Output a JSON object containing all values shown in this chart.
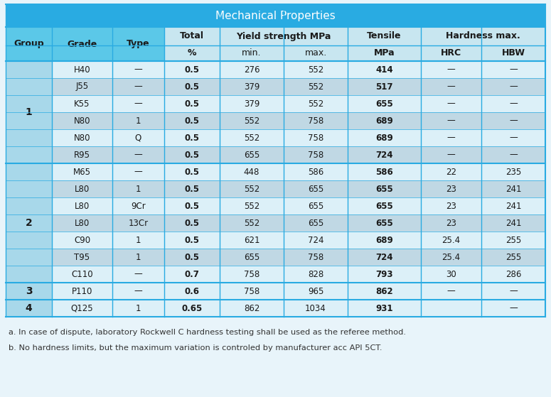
{
  "title": "Mechanical Properties",
  "title_bg": "#29ABE2",
  "title_color": "white",
  "header_bg_left": "#5BC8E8",
  "header_bg_right": "#C8E6F0",
  "group_col_bg": "#A8D8EA",
  "outer_bg": "#E8F4FA",
  "sep_color": "#29ABE2",
  "row_light": "#DCF0F8",
  "row_dark": "#C0D8E4",
  "rows": [
    {
      "group": "1",
      "grade": "H40",
      "type": "—",
      "total": "0.5",
      "ys_min": "276",
      "ys_max": "552",
      "tensile": "414",
      "hrc": "—",
      "hbw": "—",
      "group_start": true,
      "group_span": 6
    },
    {
      "group": "1",
      "grade": "J55",
      "type": "—",
      "total": "0.5",
      "ys_min": "379",
      "ys_max": "552",
      "tensile": "517",
      "hrc": "—",
      "hbw": "—",
      "group_start": false,
      "group_span": 0
    },
    {
      "group": "1",
      "grade": "K55",
      "type": "—",
      "total": "0.5",
      "ys_min": "379",
      "ys_max": "552",
      "tensile": "655",
      "hrc": "—",
      "hbw": "—",
      "group_start": false,
      "group_span": 0
    },
    {
      "group": "1",
      "grade": "N80",
      "type": "1",
      "total": "0.5",
      "ys_min": "552",
      "ys_max": "758",
      "tensile": "689",
      "hrc": "—",
      "hbw": "—",
      "group_start": false,
      "group_span": 0
    },
    {
      "group": "1",
      "grade": "N80",
      "type": "Q",
      "total": "0.5",
      "ys_min": "552",
      "ys_max": "758",
      "tensile": "689",
      "hrc": "—",
      "hbw": "—",
      "group_start": false,
      "group_span": 0
    },
    {
      "group": "1",
      "grade": "R95",
      "type": "—",
      "total": "0.5",
      "ys_min": "655",
      "ys_max": "758",
      "tensile": "724",
      "hrc": "—",
      "hbw": "—",
      "group_start": false,
      "group_span": 0
    },
    {
      "group": "2",
      "grade": "M65",
      "type": "—",
      "total": "0.5",
      "ys_min": "448",
      "ys_max": "586",
      "tensile": "586",
      "hrc": "22",
      "hbw": "235",
      "group_start": true,
      "group_span": 7
    },
    {
      "group": "2",
      "grade": "L80",
      "type": "1",
      "total": "0.5",
      "ys_min": "552",
      "ys_max": "655",
      "tensile": "655",
      "hrc": "23",
      "hbw": "241",
      "group_start": false,
      "group_span": 0
    },
    {
      "group": "2",
      "grade": "L80",
      "type": "9Cr",
      "total": "0.5",
      "ys_min": "552",
      "ys_max": "655",
      "tensile": "655",
      "hrc": "23",
      "hbw": "241",
      "group_start": false,
      "group_span": 0
    },
    {
      "group": "2",
      "grade": "L80",
      "type": "13Cr",
      "total": "0.5",
      "ys_min": "552",
      "ys_max": "655",
      "tensile": "655",
      "hrc": "23",
      "hbw": "241",
      "group_start": false,
      "group_span": 0
    },
    {
      "group": "2",
      "grade": "C90",
      "type": "1",
      "total": "0.5",
      "ys_min": "621",
      "ys_max": "724",
      "tensile": "689",
      "hrc": "25.4",
      "hbw": "255",
      "group_start": false,
      "group_span": 0
    },
    {
      "group": "2",
      "grade": "T95",
      "type": "1",
      "total": "0.5",
      "ys_min": "655",
      "ys_max": "758",
      "tensile": "724",
      "hrc": "25.4",
      "hbw": "255",
      "group_start": false,
      "group_span": 0
    },
    {
      "group": "2",
      "grade": "C110",
      "type": "—",
      "total": "0.7",
      "ys_min": "758",
      "ys_max": "828",
      "tensile": "793",
      "hrc": "30",
      "hbw": "286",
      "group_start": false,
      "group_span": 0
    },
    {
      "group": "3",
      "grade": "P110",
      "type": "—",
      "total": "0.6",
      "ys_min": "758",
      "ys_max": "965",
      "tensile": "862",
      "hrc": "—",
      "hbw": "—",
      "group_start": true,
      "group_span": 1
    },
    {
      "group": "4",
      "grade": "Q125",
      "type": "1",
      "total": "0.65",
      "ys_min": "862",
      "ys_max": "1034",
      "tensile": "931",
      "hrc": "",
      "hbw": "—",
      "group_start": true,
      "group_span": 1
    }
  ],
  "footnotes": [
    "a. In case of dispute, laboratory Rockwell C hardness testing shall be used as the referee method.",
    "b. No hardness limits, but the maximum variation is controled by manufacturer acc API 5CT."
  ]
}
